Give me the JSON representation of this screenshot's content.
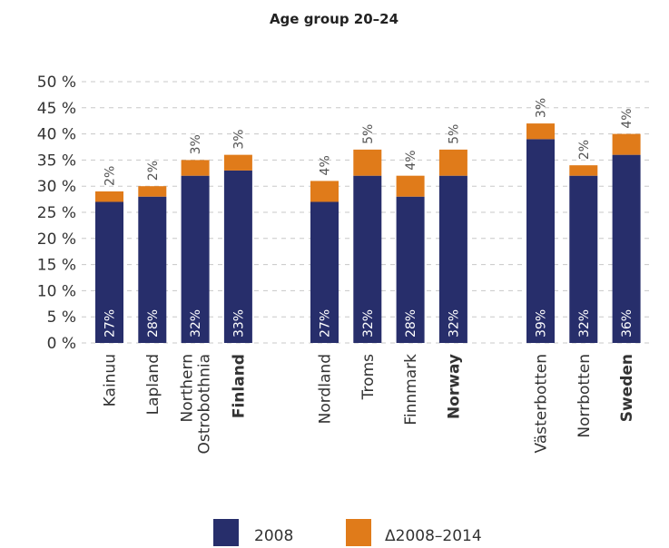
{
  "chart_data": {
    "type": "bar",
    "stacked": true,
    "title": "Age group 20–24",
    "categories": [
      "Kainuu",
      "Lapland",
      "Northern Ostrobothnia",
      "Finland",
      "Nordland",
      "Troms",
      "Finnmark",
      "Norway",
      "Västerbotten",
      "Norrbotten",
      "Sweden"
    ],
    "category_lines": [
      [
        "Kainuu"
      ],
      [
        "Lapland"
      ],
      [
        "Northern",
        "Ostrobothnia"
      ],
      [
        "Finland"
      ],
      [
        "Nordland"
      ],
      [
        "Troms"
      ],
      [
        "Finnmark"
      ],
      [
        "Norway"
      ],
      [
        "Västerbotten"
      ],
      [
        "Norrbotten"
      ],
      [
        "Sweden"
      ]
    ],
    "bold_categories": [
      "Finland",
      "Norway",
      "Sweden"
    ],
    "groups": [
      [
        0,
        1,
        2,
        3
      ],
      [
        4,
        5,
        6,
        7
      ],
      [
        8,
        9,
        10
      ]
    ],
    "series": [
      {
        "name": "2008",
        "color": "#272e6b",
        "values": [
          27,
          28,
          32,
          33,
          27,
          32,
          28,
          32,
          39,
          32,
          36
        ]
      },
      {
        "name": "Δ2008–2014",
        "color": "#e07b1a",
        "values": [
          2,
          2,
          3,
          3,
          4,
          5,
          4,
          5,
          3,
          2,
          4
        ]
      }
    ],
    "labels_2008": [
      "27%",
      "28%",
      "32%",
      "33%",
      "27%",
      "32%",
      "28%",
      "32%",
      "39%",
      "32%",
      "36%"
    ],
    "labels_delta": [
      "2%",
      "2%",
      "3%",
      "3%",
      "4%",
      "5%",
      "4%",
      "5%",
      "3%",
      "2%",
      "4%"
    ],
    "ylim": [
      0,
      50
    ],
    "yticks": [
      0,
      5,
      10,
      15,
      20,
      25,
      30,
      35,
      40,
      45,
      50
    ],
    "ytick_labels": [
      "0 %",
      "5 %",
      "10 %",
      "15 %",
      "20 %",
      "25 %",
      "30 %",
      "35 %",
      "40 %",
      "45 %",
      "50 %"
    ],
    "grid": true,
    "legend_position": "bottom"
  }
}
